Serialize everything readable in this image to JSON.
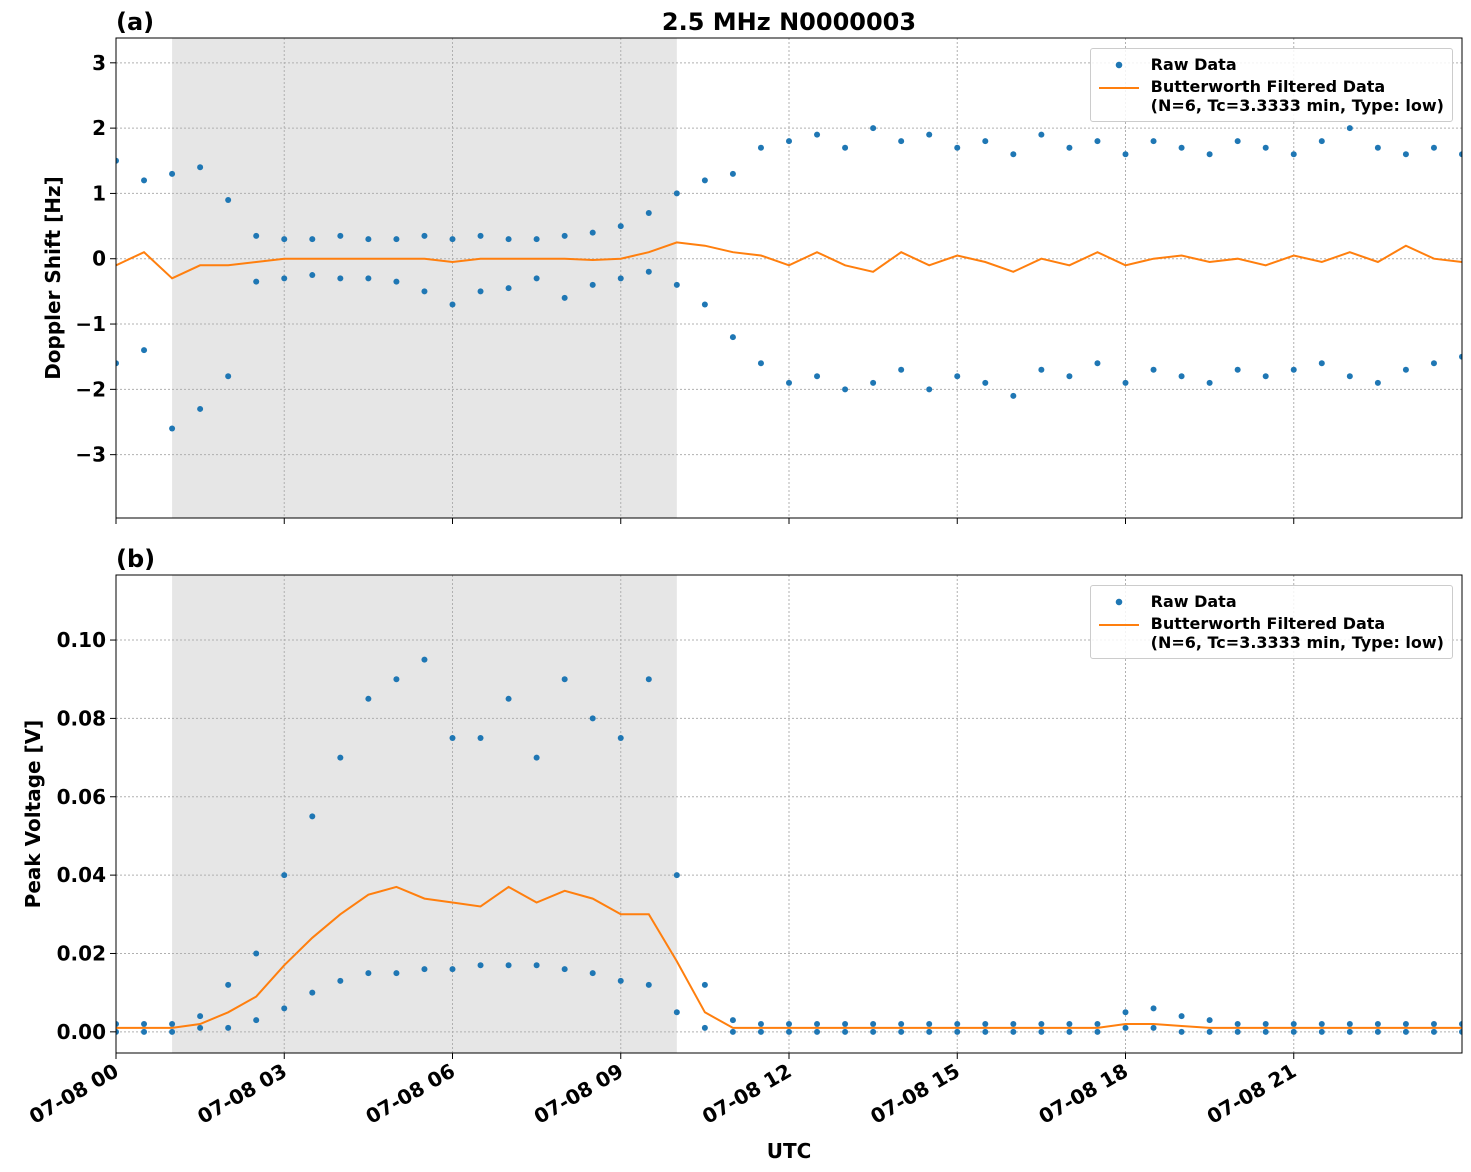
{
  "chart_data": [
    {
      "type": "scatter",
      "panel_label": "(a)",
      "title": "2.5 MHz N0000003",
      "ylabel": "Doppler Shift [Hz]",
      "xlim": [
        0,
        24
      ],
      "xticks": [
        0,
        3,
        6,
        9,
        12,
        15,
        18,
        21
      ],
      "ylim": [
        -3.97,
        3.38
      ],
      "yticks": [
        {
          "value": -3,
          "label": "−3"
        },
        {
          "value": -2,
          "label": "−2"
        },
        {
          "value": -1,
          "label": "−1"
        },
        0,
        1,
        2,
        3
      ],
      "grid": true,
      "legend": "upper right",
      "shaded_span": [
        1,
        10
      ],
      "shade_color": "#e6e6e6",
      "series": [
        {
          "name": "Raw Data",
          "mode": "markers",
          "color": "#1f77b4",
          "x": [
            0,
            0,
            0.5,
            0.5,
            1,
            1,
            1.5,
            1.5,
            2,
            2,
            2.5,
            2.5,
            3,
            3,
            3.5,
            3.5,
            4,
            4,
            4.5,
            4.5,
            5,
            5,
            5.5,
            5.5,
            6,
            6,
            6.5,
            6.5,
            7,
            7,
            7.5,
            7.5,
            8,
            8,
            8.5,
            8.5,
            9,
            9,
            9.5,
            9.5,
            10,
            10,
            10.5,
            10.5,
            11,
            11,
            11.5,
            11.5,
            12,
            12,
            12.5,
            12.5,
            13,
            13,
            13.5,
            13.5,
            14,
            14,
            14.5,
            14.5,
            15,
            15,
            15.5,
            15.5,
            16,
            16,
            16.5,
            16.5,
            17,
            17,
            17.5,
            17.5,
            18,
            18,
            18.5,
            18.5,
            19,
            19,
            19.5,
            19.5,
            20,
            20,
            20.5,
            20.5,
            21,
            21,
            21.5,
            21.5,
            22,
            22,
            22.5,
            22.5,
            23,
            23,
            23.5,
            23.5,
            24,
            24
          ],
          "values": [
            1.5,
            -1.6,
            1.2,
            -1.4,
            1.3,
            -2.6,
            1.4,
            -2.3,
            0.9,
            -1.8,
            0.35,
            -0.35,
            0.3,
            -0.3,
            0.3,
            -0.25,
            0.35,
            -0.3,
            0.3,
            -0.3,
            0.3,
            -0.35,
            0.35,
            -0.5,
            0.3,
            -0.7,
            0.35,
            -0.5,
            0.3,
            -0.45,
            0.3,
            -0.3,
            0.35,
            -0.6,
            0.4,
            -0.4,
            0.5,
            -0.3,
            0.7,
            -0.2,
            1.0,
            -0.4,
            1.2,
            -0.7,
            1.3,
            -1.2,
            1.7,
            -1.6,
            1.8,
            -1.9,
            1.9,
            -1.8,
            1.7,
            -2.0,
            2.0,
            -1.9,
            1.8,
            -1.7,
            1.9,
            -2.0,
            1.7,
            -1.8,
            1.8,
            -1.9,
            1.6,
            -2.1,
            1.9,
            -1.7,
            1.7,
            -1.8,
            1.8,
            -1.6,
            1.6,
            -1.9,
            1.8,
            -1.7,
            1.7,
            -1.8,
            1.6,
            -1.9,
            1.8,
            -1.7,
            1.7,
            -1.8,
            1.6,
            -1.7,
            1.8,
            -1.6,
            2.0,
            -1.8,
            1.7,
            -1.9,
            1.6,
            -1.7,
            1.7,
            -1.6,
            1.6,
            -1.5
          ]
        },
        {
          "name": "Butterworth Filtered Data\n(N=6, Tc=3.3333 min, Type: low)",
          "mode": "lines",
          "color": "#ff7f0e",
          "x": [
            0,
            0.5,
            1,
            1.5,
            2,
            2.5,
            3,
            3.5,
            4,
            4.5,
            5,
            5.5,
            6,
            6.5,
            7,
            7.5,
            8,
            8.5,
            9,
            9.5,
            10,
            10.5,
            11,
            11.5,
            12,
            12.5,
            13,
            13.5,
            14,
            14.5,
            15,
            15.5,
            16,
            16.5,
            17,
            17.5,
            18,
            18.5,
            19,
            19.5,
            20,
            20.5,
            21,
            21.5,
            22,
            22.5,
            23,
            23.5,
            24
          ],
          "values": [
            -0.1,
            0.1,
            -0.3,
            -0.1,
            -0.1,
            -0.05,
            0,
            0,
            0,
            0,
            0,
            0,
            -0.05,
            0,
            0,
            0,
            0,
            -0.02,
            0,
            0.1,
            0.25,
            0.2,
            0.1,
            0.05,
            -0.1,
            0.1,
            -0.1,
            -0.2,
            0.1,
            -0.1,
            0.05,
            -0.05,
            -0.2,
            0,
            -0.1,
            0.1,
            -0.1,
            0,
            0.05,
            -0.05,
            0,
            -0.1,
            0.05,
            -0.05,
            0.1,
            -0.05,
            0.2,
            0,
            -0.05
          ]
        }
      ]
    },
    {
      "type": "scatter",
      "panel_label": "(b)",
      "ylabel": "Peak Voltage [V]",
      "xlabel": "UTC",
      "xlim": [
        0,
        24
      ],
      "xticks": [
        {
          "value": 0,
          "label": "07-08 00"
        },
        {
          "value": 3,
          "label": "07-08 03"
        },
        {
          "value": 6,
          "label": "07-08 06"
        },
        {
          "value": 9,
          "label": "07-08 09"
        },
        {
          "value": 12,
          "label": "07-08 12"
        },
        {
          "value": 15,
          "label": "07-08 15"
        },
        {
          "value": 18,
          "label": "07-08 18"
        },
        {
          "value": 21,
          "label": "07-08 21"
        }
      ],
      "ylim": [
        -0.0054,
        0.1166
      ],
      "yticks": [
        {
          "value": 0,
          "label": "0.00"
        },
        {
          "value": 0.02,
          "label": "0.02"
        },
        {
          "value": 0.04,
          "label": "0.04"
        },
        {
          "value": 0.06,
          "label": "0.06"
        },
        {
          "value": 0.08,
          "label": "0.08"
        },
        {
          "value": 0.1,
          "label": "0.10"
        }
      ],
      "grid": true,
      "legend": "upper right",
      "shaded_span": [
        1,
        10
      ],
      "shade_color": "#e6e6e6",
      "series": [
        {
          "name": "Raw Data",
          "mode": "markers",
          "color": "#1f77b4",
          "x": [
            0,
            0,
            0.5,
            0.5,
            1,
            1,
            1.5,
            1.5,
            2,
            2,
            2.5,
            2.5,
            3,
            3,
            3.5,
            3.5,
            4,
            4,
            4.5,
            4.5,
            5,
            5,
            5.5,
            5.5,
            6,
            6,
            6.5,
            6.5,
            7,
            7,
            7.5,
            7.5,
            8,
            8,
            8.5,
            8.5,
            9,
            9,
            9.5,
            9.5,
            10,
            10,
            10.5,
            10.5,
            11,
            11,
            11.5,
            11.5,
            12,
            12,
            12.5,
            12.5,
            13,
            13,
            13.5,
            13.5,
            14,
            14,
            14.5,
            14.5,
            15,
            15,
            15.5,
            15.5,
            16,
            16,
            16.5,
            16.5,
            17,
            17,
            17.5,
            17.5,
            18,
            18,
            18.5,
            18.5,
            19,
            19,
            19.5,
            19.5,
            20,
            20,
            20.5,
            20.5,
            21,
            21,
            21.5,
            21.5,
            22,
            22,
            22.5,
            22.5,
            23,
            23,
            23.5,
            23.5,
            24,
            24
          ],
          "values": [
            0.002,
            0,
            0.002,
            0,
            0.002,
            0,
            0.004,
            0.001,
            0.012,
            0.001,
            0.02,
            0.003,
            0.04,
            0.006,
            0.055,
            0.01,
            0.07,
            0.013,
            0.085,
            0.015,
            0.09,
            0.015,
            0.095,
            0.016,
            0.075,
            0.016,
            0.075,
            0.017,
            0.085,
            0.017,
            0.07,
            0.017,
            0.09,
            0.016,
            0.08,
            0.015,
            0.075,
            0.013,
            0.09,
            0.012,
            0.04,
            0.005,
            0.012,
            0.001,
            0.003,
            0,
            0.002,
            0,
            0.002,
            0,
            0.002,
            0,
            0.002,
            0,
            0.002,
            0,
            0.002,
            0,
            0.002,
            0,
            0.002,
            0,
            0.002,
            0,
            0.002,
            0,
            0.002,
            0,
            0.002,
            0,
            0.002,
            0,
            0.005,
            0.001,
            0.006,
            0.001,
            0.004,
            0,
            0.003,
            0,
            0.002,
            0,
            0.002,
            0,
            0.002,
            0,
            0.002,
            0,
            0.002,
            0,
            0.002,
            0,
            0.002,
            0,
            0.002,
            0,
            0.002,
            0
          ]
        },
        {
          "name": "Butterworth Filtered Data\n(N=6, Tc=3.3333 min, Type: low)",
          "mode": "lines",
          "color": "#ff7f0e",
          "x": [
            0,
            0.5,
            1,
            1.5,
            2,
            2.5,
            3,
            3.5,
            4,
            4.5,
            5,
            5.5,
            6,
            6.5,
            7,
            7.5,
            8,
            8.5,
            9,
            9.5,
            10,
            10.5,
            11,
            11.5,
            12,
            12.5,
            13,
            13.5,
            14,
            14.5,
            15,
            15.5,
            16,
            16.5,
            17,
            17.5,
            18,
            18.5,
            19,
            19.5,
            20,
            20.5,
            21,
            21.5,
            22,
            22.5,
            23,
            23.5,
            24
          ],
          "values": [
            0.001,
            0.001,
            0.001,
            0.002,
            0.005,
            0.009,
            0.017,
            0.024,
            0.03,
            0.035,
            0.037,
            0.034,
            0.033,
            0.032,
            0.037,
            0.033,
            0.036,
            0.034,
            0.03,
            0.03,
            0.018,
            0.005,
            0.001,
            0.001,
            0.001,
            0.001,
            0.001,
            0.001,
            0.001,
            0.001,
            0.001,
            0.001,
            0.001,
            0.001,
            0.001,
            0.001,
            0.002,
            0.002,
            0.0015,
            0.001,
            0.001,
            0.001,
            0.001,
            0.001,
            0.001,
            0.001,
            0.001,
            0.001,
            0.001
          ]
        }
      ]
    }
  ]
}
